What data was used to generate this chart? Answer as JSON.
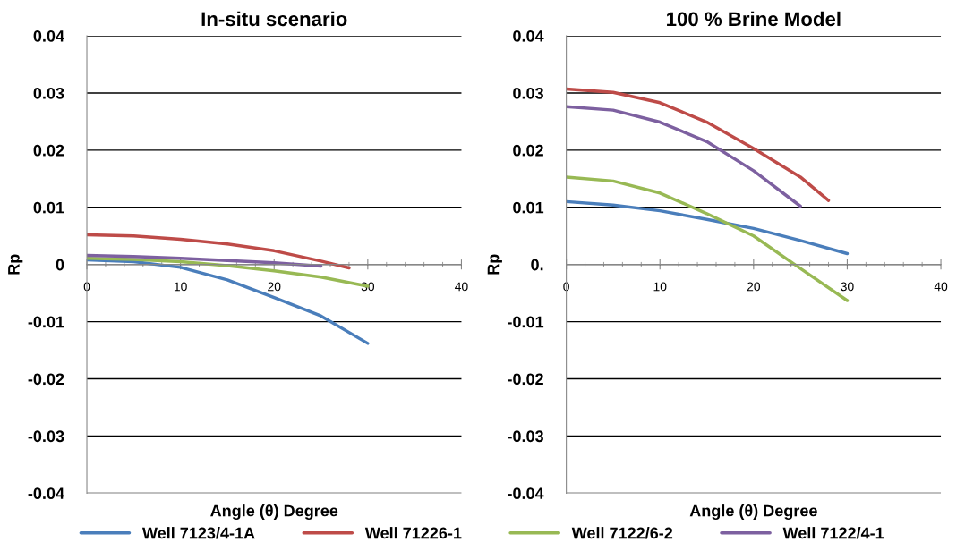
{
  "chart_data": [
    {
      "type": "line",
      "title": "In-situ scenario",
      "xlabel": "Angle (θ) Degree",
      "ylabel": "Rp",
      "xlim": [
        0,
        40
      ],
      "xticks": [
        0,
        10,
        20,
        30,
        40
      ],
      "ylim": [
        -0.04,
        0.04
      ],
      "yticks": [
        {
          "value": -0.04,
          "label": "-0.04"
        },
        {
          "value": -0.03,
          "label": "-0.03"
        },
        {
          "value": -0.02,
          "label": "-0.02"
        },
        {
          "value": -0.01,
          "label": "-0.01"
        },
        0,
        0.01,
        0.02,
        0.03,
        0.04
      ],
      "grid": "y",
      "legend": "bottom",
      "marker": "none",
      "line_style": "solid",
      "series": [
        {
          "name": "Well 7123/4-1A",
          "color": "#4a7ebb",
          "x": [
            0,
            5,
            10,
            15,
            20,
            25,
            30
          ],
          "values": [
            0.0008,
            0.0005,
            -0.0005,
            -0.0027,
            -0.0058,
            -0.009,
            -0.0138
          ]
        },
        {
          "name": "Well 71226-1",
          "color": "#be4b48",
          "x": [
            0,
            5,
            10,
            15,
            20,
            25,
            28
          ],
          "values": [
            0.0052,
            0.005,
            0.0044,
            0.0036,
            0.0024,
            0.0006,
            -0.0006
          ]
        },
        {
          "name": "Well 7122/6-2",
          "color": "#98b954",
          "x": [
            0,
            5,
            10,
            15,
            20,
            25,
            30
          ],
          "values": [
            0.0011,
            0.0009,
            0.0005,
            -0.0002,
            -0.0011,
            -0.0022,
            -0.0038
          ]
        },
        {
          "name": "Well 7122/4-1",
          "color": "#7d60a0",
          "x": [
            0,
            5,
            10,
            15,
            20,
            25
          ],
          "values": [
            0.0016,
            0.0014,
            0.0011,
            0.0007,
            0.0003,
            -0.0003
          ]
        }
      ]
    },
    {
      "type": "line",
      "title": "100 % Brine Model",
      "xlabel": "Angle (θ) Degree",
      "ylabel": "Rp",
      "xlim": [
        0,
        40
      ],
      "xticks": [
        0,
        10,
        20,
        30,
        40
      ],
      "ylim": [
        -0.04,
        0.04
      ],
      "yticks": [
        {
          "value": -0.04,
          "label": "-0.04"
        },
        {
          "value": -0.03,
          "label": "-0.03"
        },
        {
          "value": -0.02,
          "label": "-0.02"
        },
        {
          "value": -0.01,
          "label": "-0.01"
        },
        {
          "value": 0,
          "label": "0."
        },
        0.01,
        0.02,
        0.03,
        0.04
      ],
      "grid": "y",
      "marker": "none",
      "line_style": "solid",
      "series": [
        {
          "name": "Well 7123/4-1A",
          "color": "#4a7ebb",
          "x": [
            0,
            5,
            10,
            15,
            20,
            25,
            30
          ],
          "values": [
            0.011,
            0.0104,
            0.0094,
            0.0079,
            0.0063,
            0.0042,
            0.0019
          ]
        },
        {
          "name": "Well 71226-1",
          "color": "#be4b48",
          "x": [
            0,
            5,
            10,
            15,
            20,
            25,
            28
          ],
          "values": [
            0.0307,
            0.0301,
            0.0283,
            0.0249,
            0.0203,
            0.0153,
            0.0112
          ]
        },
        {
          "name": "Well 7122/6-2",
          "color": "#98b954",
          "x": [
            0,
            5,
            10,
            15,
            20,
            25,
            30
          ],
          "values": [
            0.0153,
            0.0146,
            0.0125,
            0.0089,
            0.005,
            -0.0007,
            -0.0063
          ]
        },
        {
          "name": "Well 7122/4-1",
          "color": "#7d60a0",
          "x": [
            0,
            5,
            10,
            15,
            20,
            25
          ],
          "values": [
            0.0276,
            0.027,
            0.0249,
            0.0215,
            0.0164,
            0.0102
          ]
        }
      ]
    }
  ]
}
